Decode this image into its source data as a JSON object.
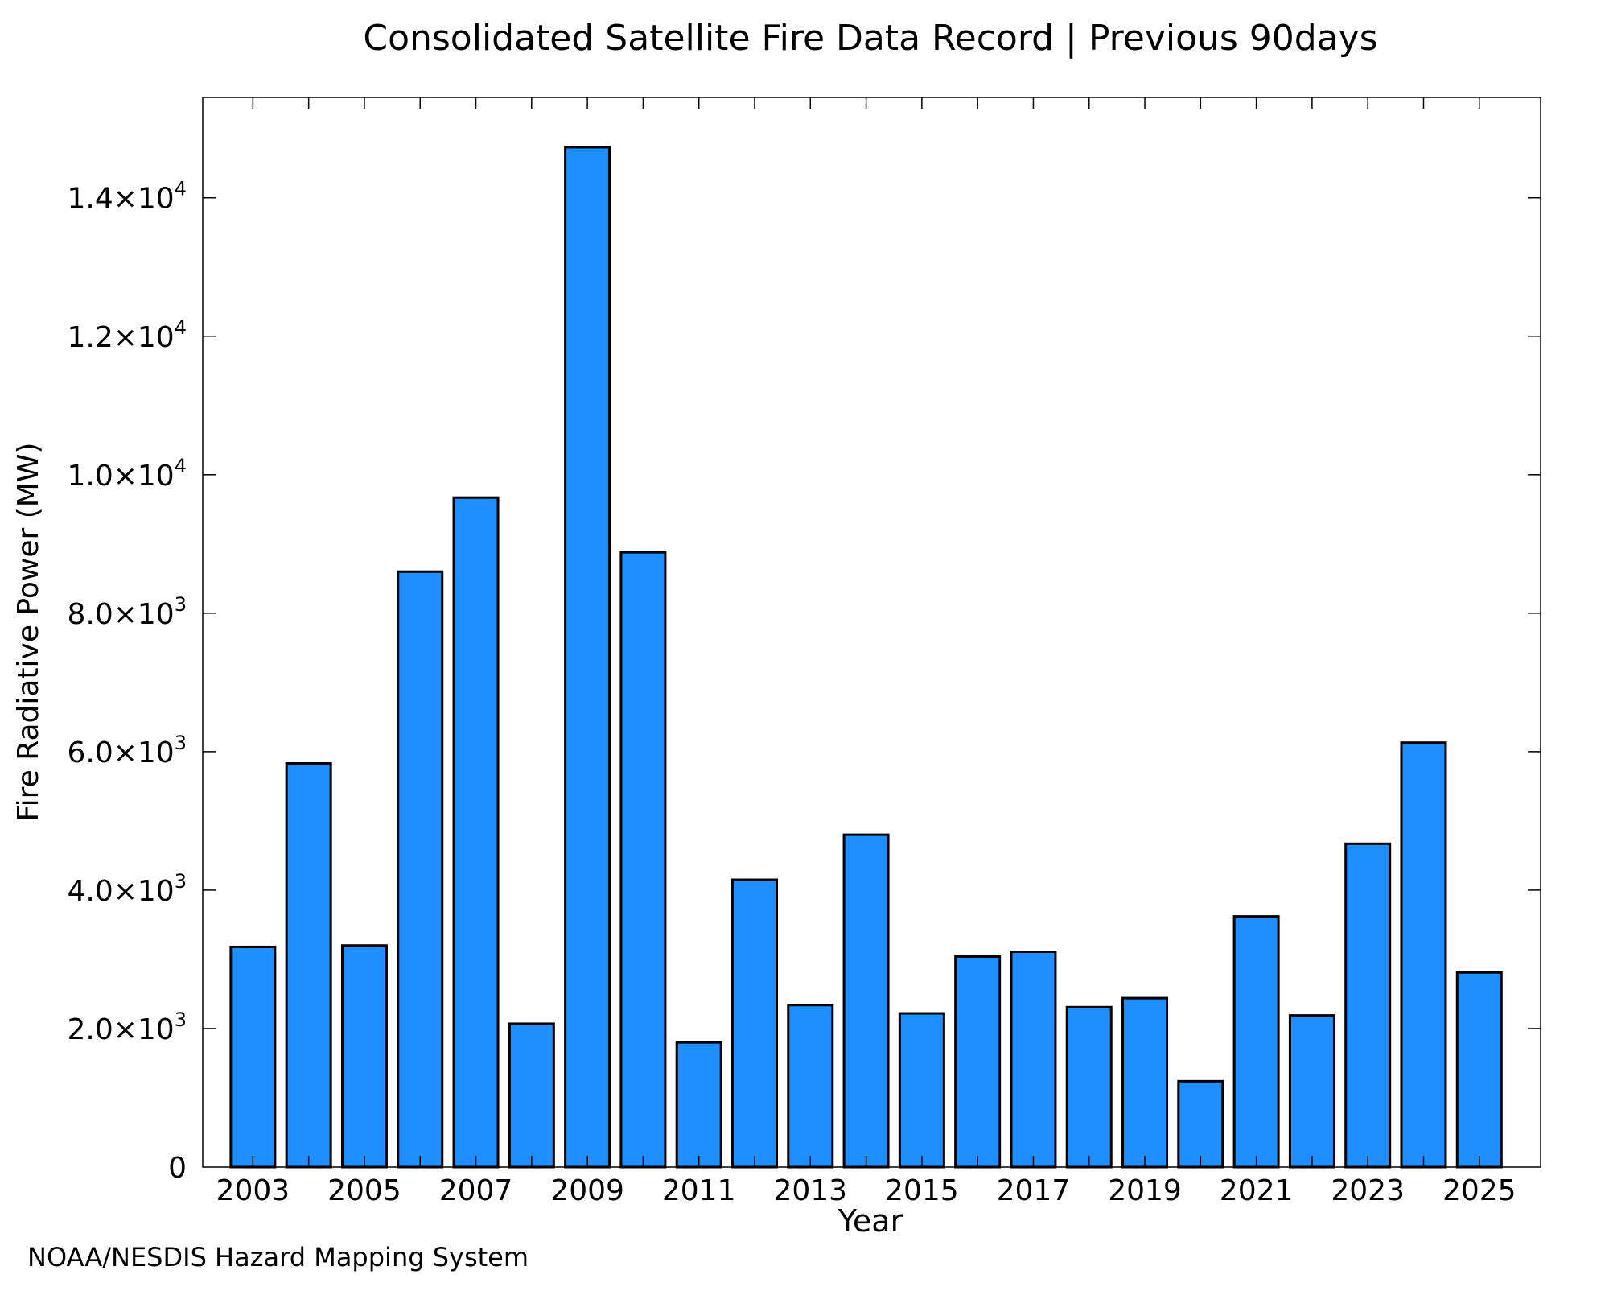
{
  "chart_data": {
    "type": "bar",
    "title": "Consolidated Satellite Fire Data Record | Previous 90days",
    "xlabel": "Year",
    "ylabel": "Fire Radiative Power (MW)",
    "categories": [
      "2003",
      "2004",
      "2005",
      "2006",
      "2007",
      "2008",
      "2009",
      "2010",
      "2011",
      "2012",
      "2013",
      "2014",
      "2015",
      "2016",
      "2017",
      "2018",
      "2019",
      "2020",
      "2021",
      "2022",
      "2023",
      "2024",
      "2025"
    ],
    "values": [
      3180,
      5830,
      3200,
      8600,
      9670,
      2070,
      14730,
      8880,
      1800,
      4150,
      2340,
      4800,
      2220,
      3040,
      3110,
      2310,
      2440,
      1240,
      3620,
      2190,
      4670,
      6130,
      2810
    ],
    "ylim": [
      0,
      15450
    ],
    "xlim": [
      2002.1,
      2026.1
    ],
    "y_ticks": [
      {
        "value": 0,
        "mantissa": "0",
        "exponent": ""
      },
      {
        "value": 2000,
        "mantissa": "2.0×10",
        "exponent": "3"
      },
      {
        "value": 4000,
        "mantissa": "4.0×10",
        "exponent": "3"
      },
      {
        "value": 6000,
        "mantissa": "6.0×10",
        "exponent": "3"
      },
      {
        "value": 8000,
        "mantissa": "8.0×10",
        "exponent": "3"
      },
      {
        "value": 10000,
        "mantissa": "1.0×10",
        "exponent": "4"
      },
      {
        "value": 12000,
        "mantissa": "1.2×10",
        "exponent": "4"
      },
      {
        "value": 14000,
        "mantissa": "1.4×10",
        "exponent": "4"
      }
    ],
    "x_ticks": [
      "2003",
      "2005",
      "2007",
      "2009",
      "2011",
      "2013",
      "2015",
      "2017",
      "2019",
      "2021",
      "2023",
      "2025"
    ],
    "grid": false,
    "bar_color": "#1f8fff",
    "bar_edge_color": "#000000"
  },
  "footer": {
    "credit": "NOAA/NESDIS Hazard Mapping System",
    "credit_color": "#808080"
  }
}
